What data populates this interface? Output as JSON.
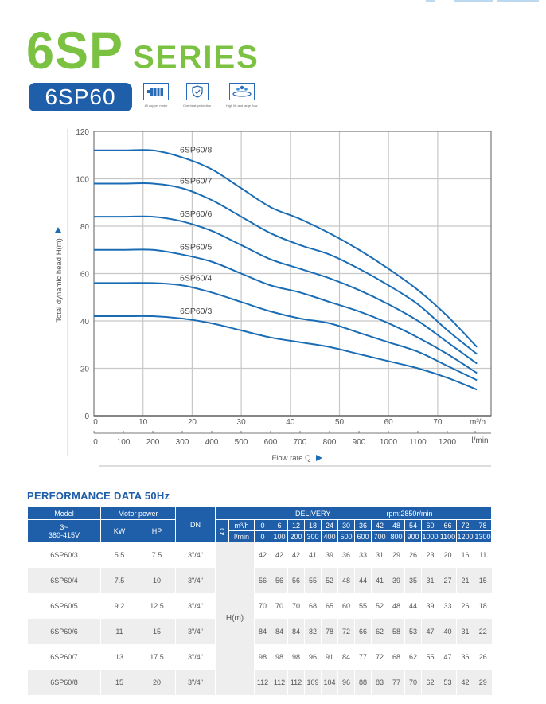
{
  "header": {
    "series_big": "6SP",
    "series_small": "SERIES",
    "model": "6SP60",
    "features": [
      {
        "icon": "motor-icon",
        "label": "All copper motor"
      },
      {
        "icon": "shield-icon",
        "label": "Overheat protection"
      },
      {
        "icon": "water-flow-icon",
        "label": "High lift and large flow"
      }
    ]
  },
  "chart_data": {
    "type": "line",
    "title": "",
    "xlabel": "Flow rate Q",
    "ylabel": "Total dynamic head H(m)",
    "x_unit_primary": "m³/h",
    "x_unit_secondary": "l/min",
    "xlim": [
      0,
      80
    ],
    "ylim": [
      0,
      120
    ],
    "x_ticks": [
      0,
      10,
      20,
      30,
      40,
      50,
      60,
      70
    ],
    "x_ticks_secondary": [
      0,
      100,
      200,
      300,
      400,
      500,
      600,
      700,
      800,
      900,
      1000,
      1100,
      1200
    ],
    "y_ticks": [
      0,
      20,
      40,
      60,
      80,
      100,
      120
    ],
    "grid": true,
    "x": [
      0,
      6,
      12,
      18,
      24,
      30,
      36,
      42,
      48,
      54,
      60,
      66,
      72,
      78
    ],
    "series": [
      {
        "name": "6SP60/3",
        "values": [
          42,
          42,
          42,
          41,
          39,
          36,
          33,
          31,
          29,
          26,
          23,
          20,
          16,
          11
        ]
      },
      {
        "name": "6SP60/4",
        "values": [
          56,
          56,
          56,
          55,
          52,
          48,
          44,
          41,
          39,
          35,
          31,
          27,
          21,
          15
        ]
      },
      {
        "name": "6SP60/5",
        "values": [
          70,
          70,
          70,
          68,
          65,
          60,
          55,
          52,
          48,
          44,
          39,
          33,
          26,
          18
        ]
      },
      {
        "name": "6SP60/6",
        "values": [
          84,
          84,
          84,
          82,
          78,
          72,
          66,
          62,
          58,
          53,
          47,
          40,
          31,
          22
        ]
      },
      {
        "name": "6SP60/7",
        "values": [
          98,
          98,
          98,
          96,
          91,
          84,
          77,
          72,
          68,
          62,
          55,
          47,
          36,
          26
        ]
      },
      {
        "name": "6SP60/8",
        "values": [
          112,
          112,
          112,
          109,
          104,
          96,
          88,
          83,
          77,
          70,
          62,
          53,
          42,
          29
        ]
      }
    ],
    "line_color": "#1a6db5"
  },
  "performance": {
    "title": "PERFORMANCE DATA 50Hz",
    "headers": {
      "model": "Model",
      "voltage_line1": "3~",
      "voltage_line2": "380-415V",
      "motor_power": "Motor power",
      "kw": "KW",
      "hp": "HP",
      "dn": "DN",
      "delivery": "DELIVERY",
      "rpm": "rpm:2850r/min",
      "q": "Q",
      "m3h": "m³/h",
      "lmin": "l/min",
      "head_unit": "H(m)"
    },
    "q_m3h": [
      "0",
      "6",
      "12",
      "18",
      "24",
      "30",
      "36",
      "42",
      "48",
      "54",
      "60",
      "66",
      "72",
      "78"
    ],
    "q_lmin": [
      "0",
      "100",
      "200",
      "300",
      "400",
      "500",
      "600",
      "700",
      "800",
      "900",
      "1000",
      "1100",
      "1200",
      "1300"
    ],
    "rows": [
      {
        "model": "6SP60/3",
        "kw": "5.5",
        "hp": "7.5",
        "dn": "3\"/4\"",
        "h": [
          "42",
          "42",
          "42",
          "41",
          "39",
          "36",
          "33",
          "31",
          "29",
          "26",
          "23",
          "20",
          "16",
          "11"
        ]
      },
      {
        "model": "6SP60/4",
        "kw": "7.5",
        "hp": "10",
        "dn": "3\"/4\"",
        "h": [
          "56",
          "56",
          "56",
          "55",
          "52",
          "48",
          "44",
          "41",
          "39",
          "35",
          "31",
          "27",
          "21",
          "15"
        ]
      },
      {
        "model": "6SP60/5",
        "kw": "9.2",
        "hp": "12.5",
        "dn": "3\"/4\"",
        "h": [
          "70",
          "70",
          "70",
          "68",
          "65",
          "60",
          "55",
          "52",
          "48",
          "44",
          "39",
          "33",
          "26",
          "18"
        ]
      },
      {
        "model": "6SP60/6",
        "kw": "11",
        "hp": "15",
        "dn": "3\"/4\"",
        "h": [
          "84",
          "84",
          "84",
          "82",
          "78",
          "72",
          "66",
          "62",
          "58",
          "53",
          "47",
          "40",
          "31",
          "22"
        ]
      },
      {
        "model": "6SP60/7",
        "kw": "13",
        "hp": "17.5",
        "dn": "3\"/4\"",
        "h": [
          "98",
          "98",
          "98",
          "96",
          "91",
          "84",
          "77",
          "72",
          "68",
          "62",
          "55",
          "47",
          "36",
          "26"
        ]
      },
      {
        "model": "6SP60/8",
        "kw": "15",
        "hp": "20",
        "dn": "3\"/4\"",
        "h": [
          "112",
          "112",
          "112",
          "109",
          "104",
          "96",
          "88",
          "83",
          "77",
          "70",
          "62",
          "53",
          "42",
          "29"
        ]
      }
    ]
  }
}
